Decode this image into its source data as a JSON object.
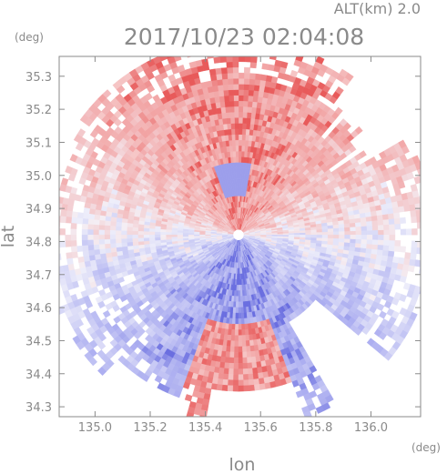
{
  "header": {
    "altitude_label": "ALT(km) 2.0",
    "timestamp": "2017/10/23 02:04:08",
    "y_unit": "(deg)",
    "x_unit": "(deg)"
  },
  "chart_data": {
    "type": "heatmap",
    "title": "2017/10/23 02:04:08",
    "subtitle": "ALT(km) 2.0",
    "xlabel": "lon",
    "ylabel": "lat",
    "x_unit": "(deg)",
    "y_unit": "(deg)",
    "xlim": [
      134.87,
      136.18
    ],
    "ylim": [
      34.27,
      35.36
    ],
    "x_ticks": [
      "135.0",
      "135.2",
      "135.4",
      "135.6",
      "135.8",
      "136.0"
    ],
    "y_ticks": [
      "34.3",
      "34.4",
      "34.5",
      "34.6",
      "34.7",
      "34.8",
      "34.9",
      "35.0",
      "35.1",
      "35.2",
      "35.3"
    ],
    "grid": false,
    "colors": {
      "positive": "#f2a0a0",
      "negative": "#a8aaf0",
      "strong_positive": "#e85a5a",
      "strong_negative": "#6a6ee0",
      "axis": "#8a8a8a"
    },
    "radar_center": {
      "lon": 135.52,
      "lat": 34.82
    }
  }
}
